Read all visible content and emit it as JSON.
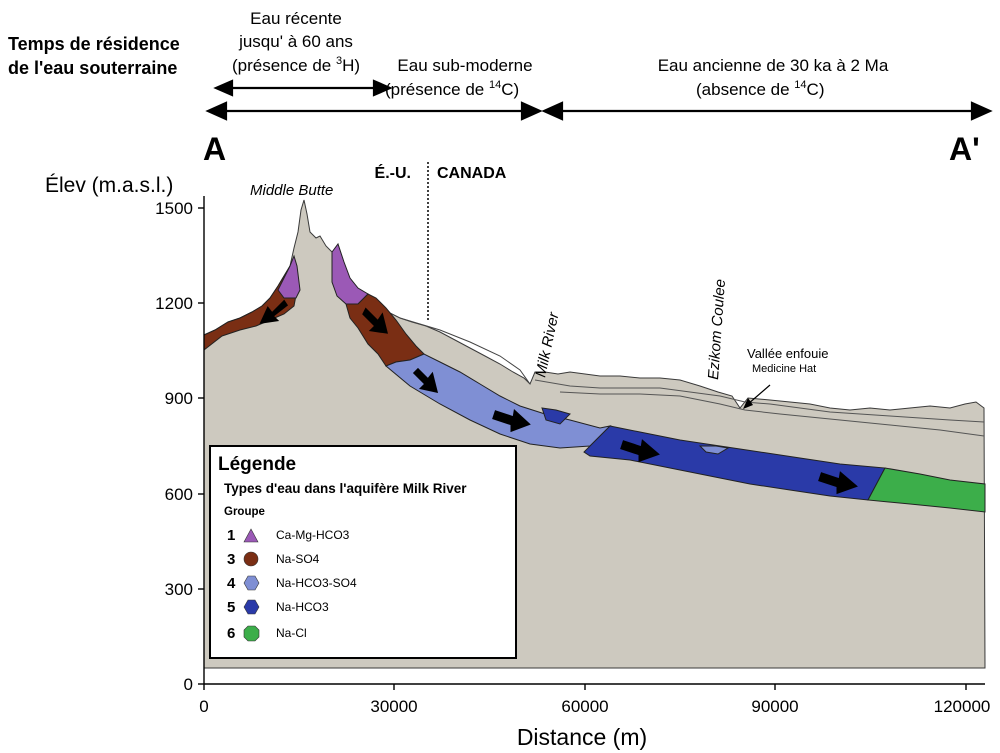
{
  "header": {
    "residence_title_1": "Temps de résidence",
    "residence_title_2": "de l'eau souterraine",
    "recent_1": "Eau récente",
    "recent_2": "jusqu' à 60 ans",
    "recent_3a": "(présence de ",
    "recent_3_sup": "3",
    "recent_3b": "H)",
    "submodern_1": "Eau sub-moderne",
    "submodern_2a": "(présence de ",
    "submodern_2_sup": "14",
    "submodern_2b": "C)",
    "ancient_1": "Eau ancienne de 30 ka à 2 Ma",
    "ancient_2a": "(absence de ",
    "ancient_2_sup": "14",
    "ancient_2b": "C)",
    "section_start": "A",
    "section_end": "A'"
  },
  "border": {
    "left": "É.-U.",
    "right": "CANADA"
  },
  "features": {
    "middle_butte": "Middle Butte",
    "milk_river": "Milk River",
    "ezikom": "Ezikom Coulee",
    "buried_valley_1": "Vallée enfouie",
    "buried_valley_2": "Medicine Hat"
  },
  "axes": {
    "ylabel": "Élev (m.a.s.l.)",
    "xlabel": "Distance (m)",
    "yticks": [
      "0",
      "300",
      "600",
      "900",
      "1200",
      "1500"
    ],
    "xticks": [
      "0",
      "30000",
      "60000",
      "90000",
      "120000"
    ]
  },
  "legend": {
    "title": "Légende",
    "subtitle": "Types d'eau dans l'aquifère Milk River",
    "group_label": "Groupe",
    "items": [
      {
        "num": "1",
        "label": "Ca-Mg-HCO3",
        "color": "#9b59b6",
        "shape": "triangle"
      },
      {
        "num": "3",
        "label": "Na-SO4",
        "color": "#7a2e14",
        "shape": "circle"
      },
      {
        "num": "4",
        "label": "Na-HCO3-SO4",
        "color": "#7f8fd4",
        "shape": "hexagon"
      },
      {
        "num": "5",
        "label": "Na-HCO3",
        "color": "#2a3aa8",
        "shape": "hexagon"
      },
      {
        "num": "6",
        "label": "Na-Cl",
        "color": "#3cae4a",
        "shape": "octagon"
      }
    ]
  },
  "colors": {
    "terrain": "#cdc9bf",
    "ca_mg_hco3": "#9b59b6",
    "na_so4": "#7a2e14",
    "na_hco3_so4": "#7f8fd4",
    "na_hco3": "#2a3aa8",
    "na_cl": "#3cae4a"
  }
}
